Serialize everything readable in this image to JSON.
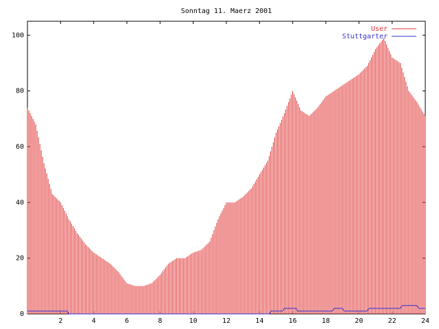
{
  "chart_data": {
    "type": "bar",
    "title": "Sonntag 11. Maerz 2001",
    "xlabel": "",
    "ylabel": "",
    "xlim": [
      0,
      24
    ],
    "ylim": [
      0,
      105
    ],
    "xticks": [
      2,
      4,
      6,
      8,
      10,
      12,
      14,
      16,
      18,
      20,
      22,
      24
    ],
    "yticks": [
      0,
      20,
      40,
      60,
      80,
      100
    ],
    "legend_position": "top-right",
    "series": [
      {
        "name": "User",
        "style": "impulses",
        "color": "#e03030",
        "points": [
          [
            0,
            74
          ],
          [
            0.5,
            68
          ],
          [
            1,
            54
          ],
          [
            1.5,
            43
          ],
          [
            2,
            40
          ],
          [
            2.5,
            34
          ],
          [
            3,
            29
          ],
          [
            3.5,
            25
          ],
          [
            4,
            22
          ],
          [
            4.5,
            20
          ],
          [
            5,
            18
          ],
          [
            5.5,
            15
          ],
          [
            6,
            11
          ],
          [
            6.5,
            10
          ],
          [
            7,
            10
          ],
          [
            7.5,
            11
          ],
          [
            8,
            14
          ],
          [
            8.5,
            18
          ],
          [
            9,
            20
          ],
          [
            9.5,
            20
          ],
          [
            10,
            22
          ],
          [
            10.5,
            23
          ],
          [
            11,
            26
          ],
          [
            11.5,
            34
          ],
          [
            12,
            40
          ],
          [
            12.5,
            40
          ],
          [
            13,
            42
          ],
          [
            13.5,
            45
          ],
          [
            14,
            50
          ],
          [
            14.5,
            55
          ],
          [
            15,
            65
          ],
          [
            15.5,
            72
          ],
          [
            16,
            80
          ],
          [
            16.5,
            73
          ],
          [
            17,
            71
          ],
          [
            17.5,
            74
          ],
          [
            18,
            78
          ],
          [
            18.5,
            80
          ],
          [
            19,
            82
          ],
          [
            19.5,
            84
          ],
          [
            20,
            86
          ],
          [
            20.5,
            89
          ],
          [
            21,
            95
          ],
          [
            21.5,
            99
          ],
          [
            22,
            92
          ],
          [
            22.5,
            90
          ],
          [
            23,
            80
          ],
          [
            23.5,
            76
          ],
          [
            24,
            71
          ]
        ]
      },
      {
        "name": "Stuttgarter",
        "style": "lines",
        "color": "#3030d0",
        "points": [
          [
            0,
            1
          ],
          [
            2.4,
            1
          ],
          [
            2.5,
            0
          ],
          [
            14.6,
            0
          ],
          [
            14.7,
            1
          ],
          [
            15.4,
            1
          ],
          [
            15.5,
            2
          ],
          [
            16.2,
            2
          ],
          [
            16.3,
            1
          ],
          [
            18.4,
            1
          ],
          [
            18.5,
            2
          ],
          [
            19,
            2
          ],
          [
            19.1,
            1
          ],
          [
            20.5,
            1
          ],
          [
            20.6,
            2
          ],
          [
            22.5,
            2
          ],
          [
            22.6,
            3
          ],
          [
            23.5,
            3
          ],
          [
            23.6,
            2
          ],
          [
            24,
            2
          ]
        ]
      }
    ]
  }
}
